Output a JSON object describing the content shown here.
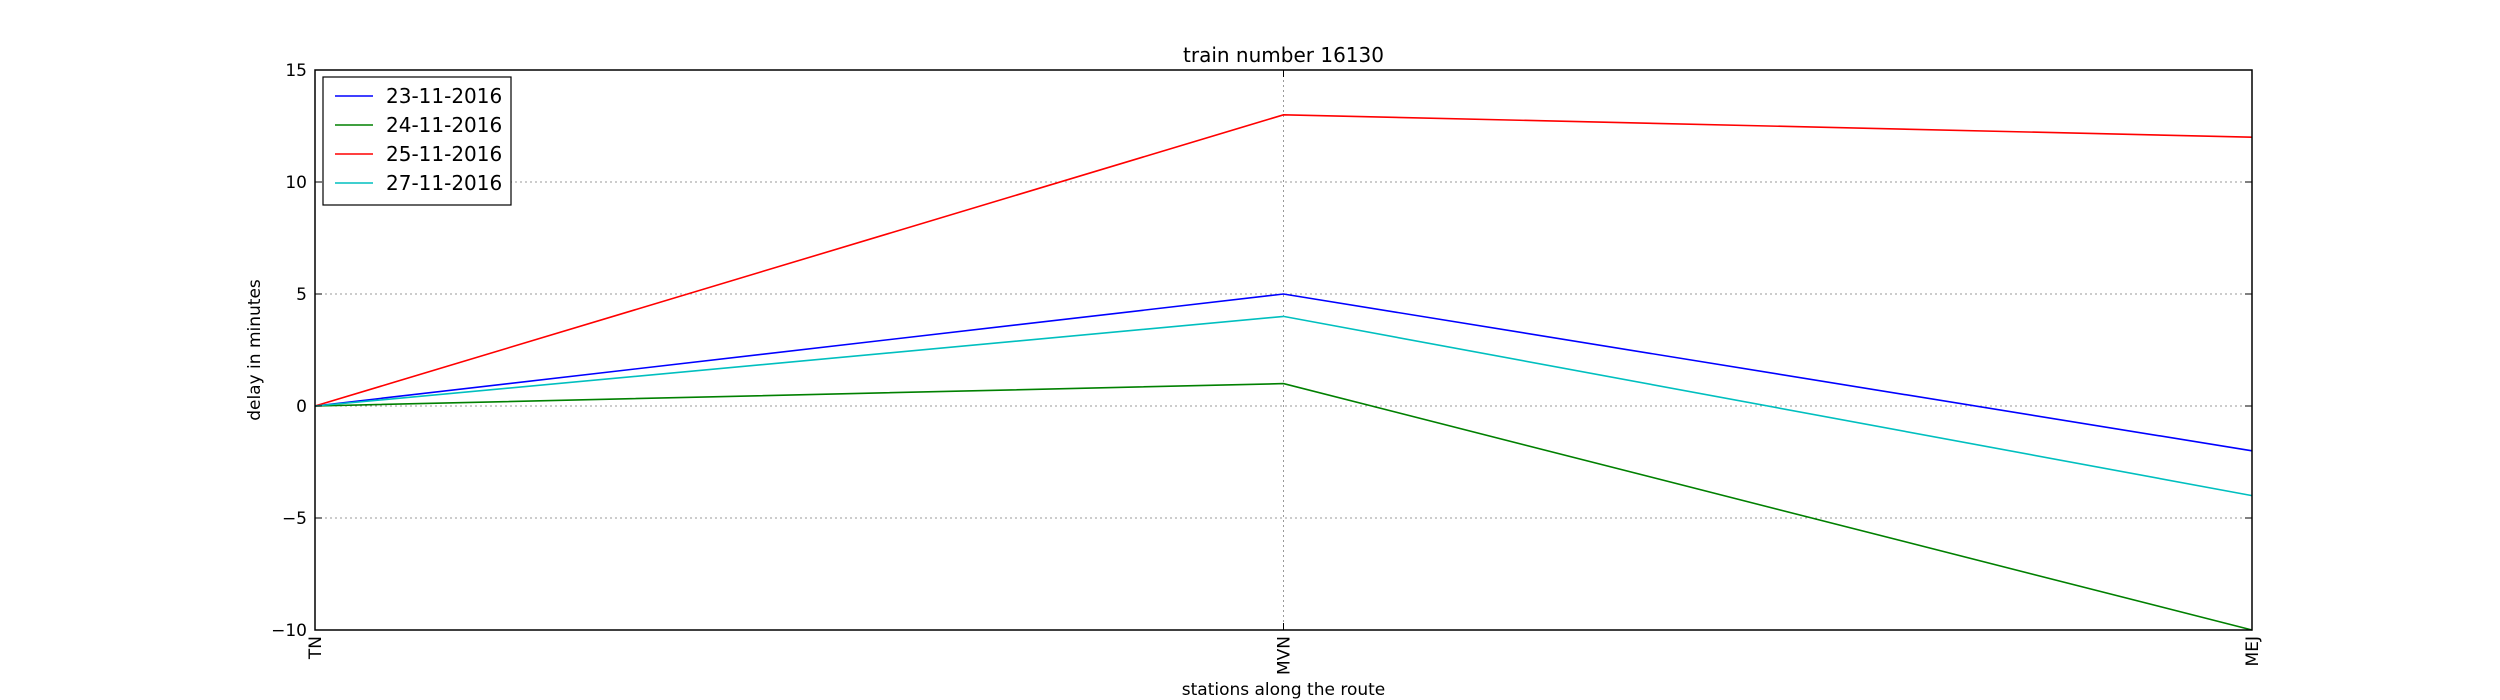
{
  "chart_data": {
    "type": "line",
    "title": "train number 16130",
    "xlabel": "stations along the route",
    "ylabel": "delay in minutes",
    "categories": [
      "TN",
      "MVN",
      "MEJ"
    ],
    "ylim": [
      -10,
      15
    ],
    "yticks": [
      -10,
      -5,
      0,
      5,
      10,
      15
    ],
    "ytick_labels": [
      "−10",
      "−5",
      "0",
      "5",
      "10",
      "15"
    ],
    "grid": true,
    "legend_position": "top-left",
    "series": [
      {
        "name": "23-11-2016",
        "color": "#0000ff",
        "values": [
          0,
          5,
          -2
        ]
      },
      {
        "name": "24-11-2016",
        "color": "#008000",
        "values": [
          0,
          1,
          -10
        ]
      },
      {
        "name": "25-11-2016",
        "color": "#ff0000",
        "values": [
          0,
          13,
          12
        ]
      },
      {
        "name": "27-11-2016",
        "color": "#00bfbf",
        "values": [
          0,
          4,
          -4
        ]
      }
    ]
  }
}
